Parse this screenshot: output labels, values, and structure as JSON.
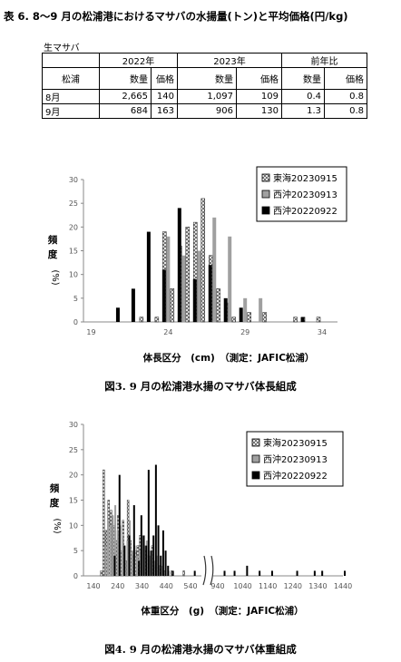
{
  "title": "表 6. 8～9 月の松浦港におけるマサバの水揚量(トン)と平均価格(円/kg)",
  "table": {
    "caption": "生マサバ",
    "row_header": "松浦",
    "groups": [
      "2022年",
      "2023年",
      "前年比"
    ],
    "sub": [
      "数量",
      "価格",
      "数量",
      "価格",
      "数量",
      "価格"
    ],
    "rows": [
      {
        "month": "8月",
        "cells": [
          "2,665",
          "140",
          "1,097",
          "109",
          "0.4",
          "0.8"
        ]
      },
      {
        "month": "9月",
        "cells": [
          "684",
          "163",
          "906",
          "130",
          "1.3",
          "0.8"
        ]
      }
    ]
  },
  "colors": {
    "tokai": "#ffffff",
    "seioki23": "#a0a0a0",
    "seioki22": "#000000"
  },
  "chart_data": [
    {
      "type": "bar",
      "caption": "図3. 9 月の松浦港水揚のマサバ体長組成",
      "ylabel": "頻度（%）",
      "xlabel": "体長区分　(cm)　（測定：JAFIC松浦）",
      "ylim": [
        0,
        30
      ],
      "yticks": [
        0,
        5,
        10,
        15,
        20,
        25,
        30
      ],
      "xticks": [
        "19",
        "24",
        "29",
        "34"
      ],
      "x_range": [
        18.5,
        35
      ],
      "grid": false,
      "legend_position": "top-right",
      "series": [
        {
          "name": "東海20230915",
          "x": [
            22.5,
            23.5,
            24,
            24.5,
            25,
            25.5,
            26,
            26.5,
            27,
            27.5,
            28,
            28.5,
            29.5,
            30.5,
            32.5,
            33,
            34
          ],
          "values": [
            1,
            1,
            19,
            7,
            16,
            20,
            21,
            26,
            14,
            7,
            4,
            1,
            2,
            2,
            1,
            1,
            1
          ]
        },
        {
          "name": "西沖20230913",
          "x": [
            24,
            25,
            26,
            27,
            28,
            29,
            30
          ],
          "values": [
            18,
            14,
            15,
            22,
            18,
            5,
            5
          ]
        },
        {
          "name": "西沖20220922",
          "x": [
            20.5,
            21.5,
            22.5,
            23.5,
            24.5,
            25.5,
            26.5,
            27.5,
            28.5,
            32.5
          ],
          "values": [
            3,
            7,
            19,
            11,
            24,
            9,
            12,
            5,
            3,
            1
          ]
        }
      ]
    },
    {
      "type": "bar",
      "caption": "図4. 9 月の松浦港水揚のマサバ体重組成",
      "ylabel": "頻度（%）",
      "xlabel": "体重区分　(g)　（測定：JAFIC松浦）",
      "ylim": [
        0,
        30
      ],
      "yticks": [
        0,
        5,
        10,
        15,
        20,
        25,
        30
      ],
      "xticks": [
        "140",
        "240",
        "340",
        "440",
        "540",
        "940",
        "1040",
        "1140",
        "1240",
        "1340",
        "1440"
      ],
      "axis_break": "540–940",
      "grid": false,
      "legend_position": "top-right",
      "series": [
        {
          "name": "東海20230915",
          "x": [
            180,
            190,
            200,
            210,
            220,
            230,
            240,
            250,
            260,
            270,
            280,
            290,
            300,
            310,
            320,
            330,
            340,
            350,
            360,
            370,
            380,
            390,
            400,
            410,
            420,
            440,
            470,
            520
          ],
          "values": [
            1,
            21,
            9,
            15,
            13,
            10,
            7,
            12,
            5,
            11,
            3,
            15,
            7,
            4,
            5,
            6,
            8,
            7,
            5,
            4,
            3,
            6,
            2,
            3,
            2,
            1,
            1,
            1
          ]
        },
        {
          "name": "西沖20230913",
          "x": [
            190,
            200,
            210,
            220,
            230,
            240,
            250,
            260,
            270,
            280,
            290,
            300,
            310,
            320,
            330,
            340,
            350,
            360,
            370,
            380,
            390,
            400,
            410,
            420,
            430,
            450
          ],
          "values": [
            6,
            11,
            10,
            12,
            14,
            9,
            10,
            8,
            6,
            7,
            11,
            5,
            6,
            4,
            5,
            8,
            6,
            7,
            4,
            5,
            3,
            4,
            2,
            2,
            1,
            1
          ]
        },
        {
          "name": "西沖20220922",
          "x": [
            220,
            240,
            260,
            280,
            300,
            320,
            330,
            340,
            350,
            360,
            370,
            380,
            390,
            400,
            410,
            420,
            430,
            440,
            460,
            550,
            960,
            1000,
            1050,
            1100,
            1150,
            1250,
            1320,
            1350,
            1440
          ],
          "values": [
            4,
            20,
            6,
            8,
            14,
            3,
            12,
            8,
            6,
            21,
            5,
            8,
            22,
            10,
            4,
            9,
            5,
            2,
            1,
            1,
            1,
            1,
            2,
            1,
            1,
            1,
            1,
            1,
            1
          ]
        }
      ]
    }
  ]
}
